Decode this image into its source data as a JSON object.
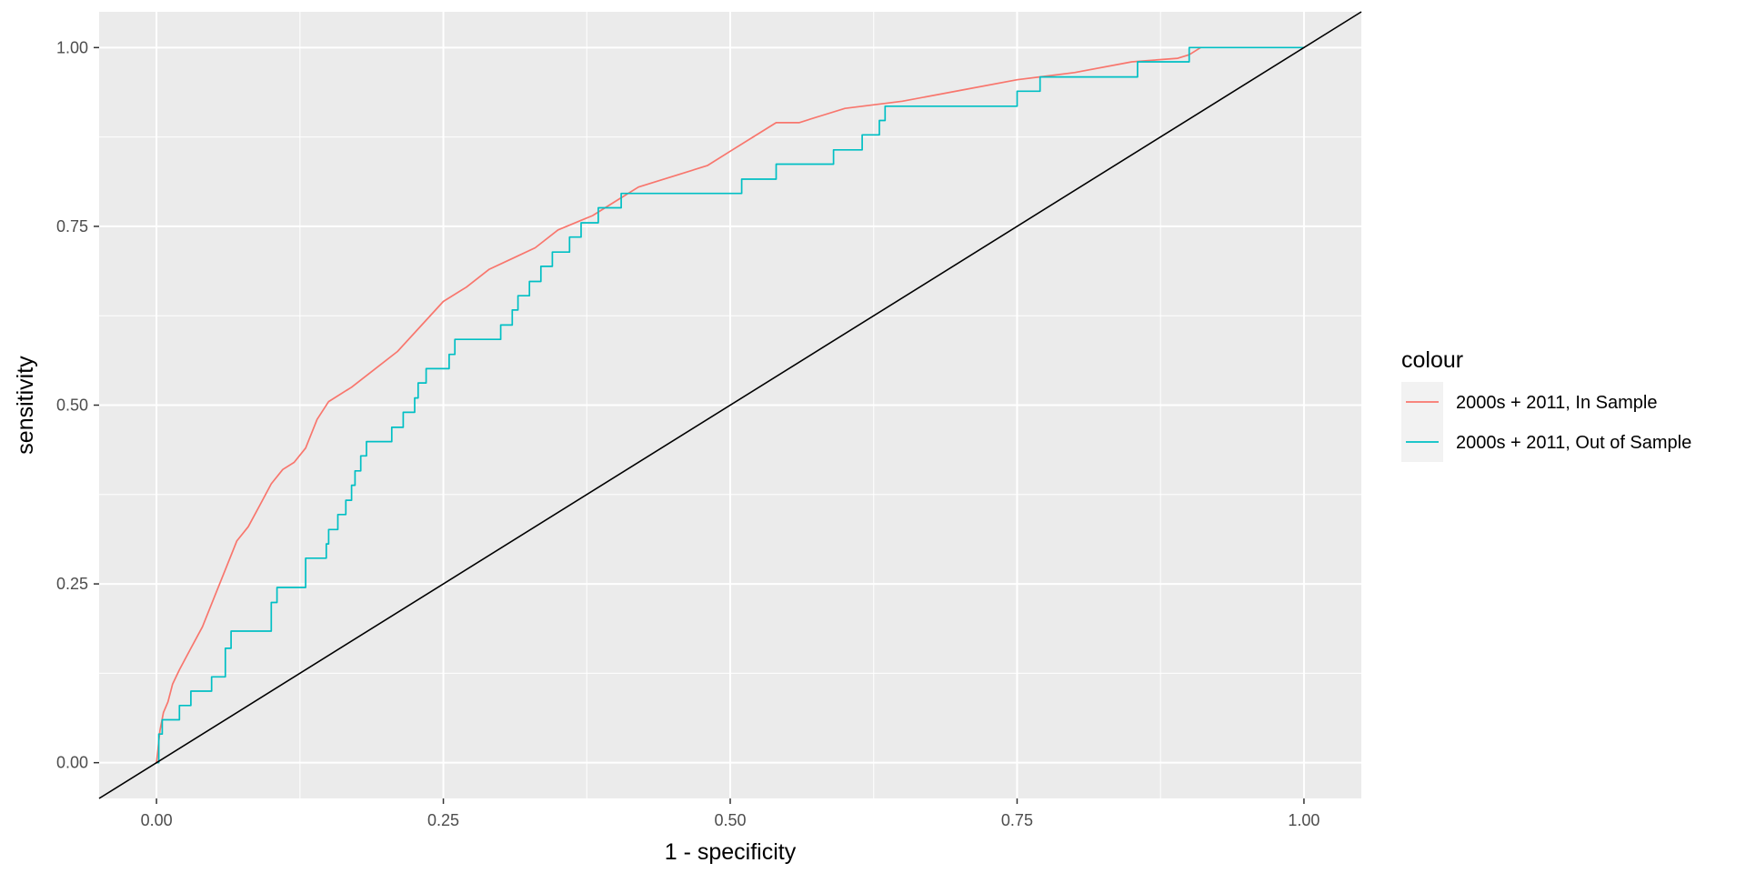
{
  "chart_data": {
    "type": "line",
    "xlabel": "1 - specificity",
    "ylabel": "sensitivity",
    "xlim": [
      -0.05,
      1.05
    ],
    "ylim": [
      -0.05,
      1.05
    ],
    "x_ticks": [
      0,
      0.25,
      0.5,
      0.75,
      1
    ],
    "x_tick_labels": [
      "0.00",
      "0.25",
      "0.50",
      "0.75",
      "1.00"
    ],
    "y_ticks": [
      0,
      0.25,
      0.5,
      0.75,
      1
    ],
    "y_tick_labels": [
      "0.00",
      "0.25",
      "0.50",
      "0.75",
      "1.00"
    ],
    "grid": true,
    "legend": {
      "title": "colour",
      "position": "right"
    },
    "reference_line": {
      "points": [
        [
          -0.05,
          -0.05
        ],
        [
          1.05,
          1.05
        ]
      ],
      "color": "#000000"
    },
    "series": [
      {
        "name": "2000s + 2011, In Sample",
        "color": "#F8766D",
        "step": false,
        "points": [
          [
            0.0,
            0.0
          ],
          [
            0.003,
            0.045
          ],
          [
            0.006,
            0.07
          ],
          [
            0.01,
            0.085
          ],
          [
            0.014,
            0.11
          ],
          [
            0.02,
            0.13
          ],
          [
            0.03,
            0.16
          ],
          [
            0.04,
            0.19
          ],
          [
            0.05,
            0.23
          ],
          [
            0.06,
            0.27
          ],
          [
            0.07,
            0.31
          ],
          [
            0.08,
            0.33
          ],
          [
            0.09,
            0.36
          ],
          [
            0.1,
            0.39
          ],
          [
            0.11,
            0.41
          ],
          [
            0.12,
            0.42
          ],
          [
            0.13,
            0.44
          ],
          [
            0.14,
            0.48
          ],
          [
            0.15,
            0.505
          ],
          [
            0.17,
            0.525
          ],
          [
            0.19,
            0.55
          ],
          [
            0.21,
            0.575
          ],
          [
            0.23,
            0.61
          ],
          [
            0.25,
            0.645
          ],
          [
            0.27,
            0.665
          ],
          [
            0.29,
            0.69
          ],
          [
            0.31,
            0.705
          ],
          [
            0.33,
            0.72
          ],
          [
            0.35,
            0.745
          ],
          [
            0.38,
            0.765
          ],
          [
            0.4,
            0.785
          ],
          [
            0.42,
            0.805
          ],
          [
            0.45,
            0.82
          ],
          [
            0.48,
            0.835
          ],
          [
            0.5,
            0.855
          ],
          [
            0.52,
            0.875
          ],
          [
            0.54,
            0.895
          ],
          [
            0.56,
            0.895
          ],
          [
            0.58,
            0.905
          ],
          [
            0.6,
            0.915
          ],
          [
            0.65,
            0.925
          ],
          [
            0.7,
            0.94
          ],
          [
            0.75,
            0.955
          ],
          [
            0.8,
            0.965
          ],
          [
            0.85,
            0.98
          ],
          [
            0.89,
            0.985
          ],
          [
            0.9,
            0.99
          ],
          [
            0.91,
            1.0
          ]
        ]
      },
      {
        "name": "2000s + 2011, Out of Sample",
        "color": "#00BFC4",
        "step": true,
        "points": [
          [
            0.0,
            0.0
          ],
          [
            0.002,
            0.04
          ],
          [
            0.005,
            0.06
          ],
          [
            0.02,
            0.08
          ],
          [
            0.03,
            0.1
          ],
          [
            0.048,
            0.12
          ],
          [
            0.06,
            0.16
          ],
          [
            0.065,
            0.184
          ],
          [
            0.1,
            0.224
          ],
          [
            0.105,
            0.245
          ],
          [
            0.13,
            0.286
          ],
          [
            0.148,
            0.306
          ],
          [
            0.15,
            0.326
          ],
          [
            0.158,
            0.347
          ],
          [
            0.165,
            0.367
          ],
          [
            0.17,
            0.388
          ],
          [
            0.173,
            0.408
          ],
          [
            0.178,
            0.429
          ],
          [
            0.183,
            0.449
          ],
          [
            0.205,
            0.469
          ],
          [
            0.215,
            0.49
          ],
          [
            0.225,
            0.51
          ],
          [
            0.228,
            0.531
          ],
          [
            0.235,
            0.551
          ],
          [
            0.255,
            0.571
          ],
          [
            0.26,
            0.592
          ],
          [
            0.3,
            0.612
          ],
          [
            0.31,
            0.633
          ],
          [
            0.315,
            0.653
          ],
          [
            0.325,
            0.673
          ],
          [
            0.335,
            0.694
          ],
          [
            0.345,
            0.714
          ],
          [
            0.36,
            0.735
          ],
          [
            0.37,
            0.755
          ],
          [
            0.385,
            0.776
          ],
          [
            0.405,
            0.796
          ],
          [
            0.5,
            0.796
          ],
          [
            0.51,
            0.816
          ],
          [
            0.54,
            0.837
          ],
          [
            0.59,
            0.857
          ],
          [
            0.615,
            0.878
          ],
          [
            0.63,
            0.898
          ],
          [
            0.635,
            0.918
          ],
          [
            0.74,
            0.918
          ],
          [
            0.75,
            0.939
          ],
          [
            0.77,
            0.959
          ],
          [
            0.855,
            0.98
          ],
          [
            0.9,
            1.0
          ],
          [
            1.0,
            1.0
          ]
        ]
      }
    ]
  }
}
